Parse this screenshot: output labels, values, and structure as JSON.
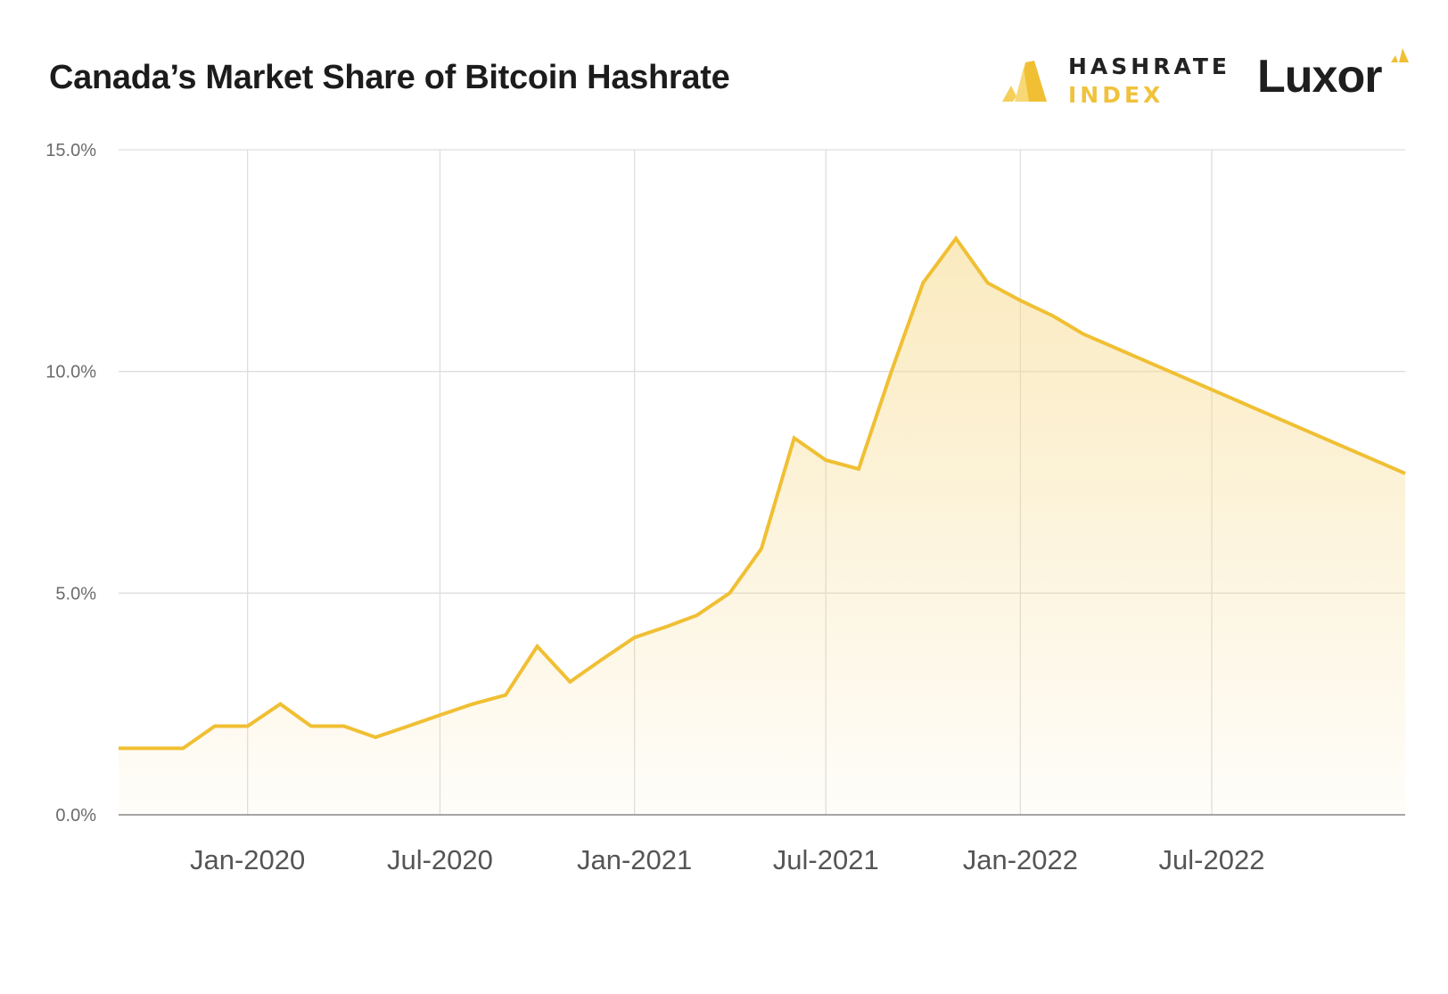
{
  "header": {
    "title": "Canada’s Market Share of Bitcoin Hashrate",
    "logo_hashrate_line1": "HASHRATE",
    "logo_hashrate_line2": "INDEX",
    "logo_luxor": "Luxor"
  },
  "colors": {
    "line": "#f0bf33",
    "fill_top": "#f6d98a",
    "grid": "#dedede",
    "axis": "#888888"
  },
  "chart_data": {
    "type": "area",
    "title": "Canada’s Market Share of Bitcoin Hashrate",
    "xlabel": "",
    "ylabel": "",
    "ylim": [
      0,
      15
    ],
    "xlim": [
      "2019-09-01",
      "2022-12-31"
    ],
    "yticks": [
      {
        "value": 0,
        "label": "0.0%"
      },
      {
        "value": 5,
        "label": "5.0%"
      },
      {
        "value": 10,
        "label": "10.0%"
      },
      {
        "value": 15,
        "label": "15.0%"
      }
    ],
    "xticks": [
      {
        "date": "2020-01-01",
        "label": "Jan-2020"
      },
      {
        "date": "2020-07-01",
        "label": "Jul-2020"
      },
      {
        "date": "2021-01-01",
        "label": "Jan-2021"
      },
      {
        "date": "2021-07-01",
        "label": "Jul-2021"
      },
      {
        "date": "2022-01-01",
        "label": "Jan-2022"
      },
      {
        "date": "2022-07-01",
        "label": "Jul-2022"
      }
    ],
    "grid": true,
    "legend": "none",
    "x": [
      "2019-09-01",
      "2019-10-01",
      "2019-11-01",
      "2019-12-01",
      "2020-01-01",
      "2020-02-01",
      "2020-03-01",
      "2020-04-01",
      "2020-05-01",
      "2020-06-01",
      "2020-07-01",
      "2020-08-01",
      "2020-09-01",
      "2020-10-01",
      "2020-11-01",
      "2020-12-01",
      "2021-01-01",
      "2021-02-01",
      "2021-03-01",
      "2021-04-01",
      "2021-05-01",
      "2021-06-01",
      "2021-07-01",
      "2021-08-01",
      "2021-09-01",
      "2021-10-01",
      "2021-11-01",
      "2021-12-01",
      "2022-01-01",
      "2022-02-01",
      "2022-03-01",
      "2022-12-31"
    ],
    "values": [
      1.5,
      1.5,
      1.5,
      2.0,
      2.0,
      2.5,
      2.0,
      2.0,
      1.75,
      2.0,
      2.25,
      2.5,
      2.7,
      3.8,
      3.0,
      3.5,
      4.0,
      4.25,
      4.5,
      5.0,
      6.0,
      8.5,
      8.0,
      7.8,
      10.0,
      12.0,
      13.0,
      12.0,
      11.6,
      11.25,
      10.85,
      7.7
    ]
  }
}
